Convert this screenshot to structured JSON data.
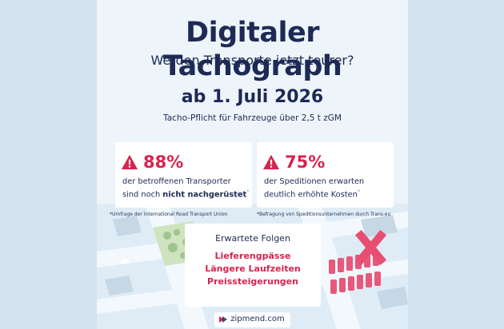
{
  "header": {
    "title": "Digitaler Tachograph",
    "subtitle": "Werden Transporte jetzt teurer?"
  },
  "deadline": {
    "date": "ab 1. Juli 2026",
    "note": "Tacho-Pflicht für Fahrzeuge über 2,5 t zGM"
  },
  "stats": [
    {
      "value": "88%",
      "line1": "der betroffenen Transporter",
      "line2_prefix": "sind noch ",
      "line2_emph": "nicht nachgerüstet",
      "marker": "*",
      "source": "*Umfrage der International Road Transport Union"
    },
    {
      "value": "75%",
      "line1": "der Speditionen erwarten",
      "line2_prefix": "deutlich erhöhte Kosten",
      "line2_emph": "",
      "marker": "*",
      "source": "*Befragung von Speditionsunternehmen durch Trans.eu"
    }
  ],
  "consequences": {
    "heading": "Erwartete Folgen",
    "items": [
      "Lieferengpässe",
      "Längere Laufzeiten",
      "Preissteigerungen"
    ]
  },
  "footer": {
    "brand": "zipmend.com"
  },
  "colors": {
    "navy": "#1d2a55",
    "accent": "#d8234e",
    "background": "#edf4fa"
  },
  "icons": [
    "warning-icon",
    "zipmend-logo-icon"
  ]
}
